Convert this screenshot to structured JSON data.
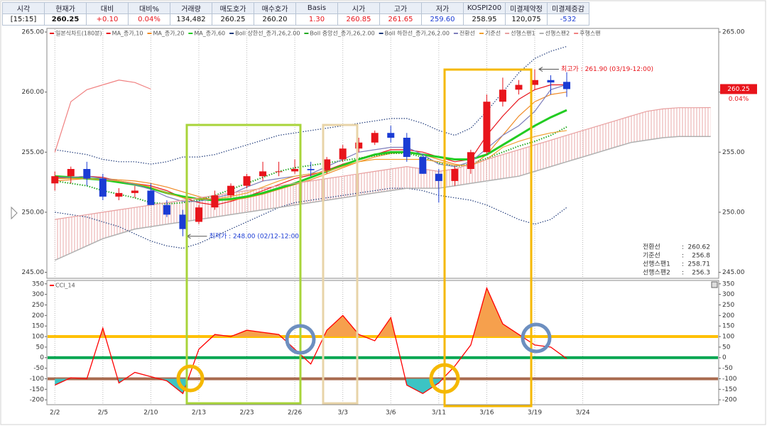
{
  "header_table": {
    "headers": [
      "시각",
      "현재가",
      "대비",
      "대비%",
      "거래량",
      "매도호가",
      "매수호가",
      "Basis",
      "시가",
      "고가",
      "저가",
      "KOSPI200",
      "미결제약정",
      "미결제증감"
    ],
    "values": [
      "[15:15]",
      "260.25",
      "+0.10",
      "0.04%",
      "134,482",
      "260.25",
      "260.20",
      "1.30",
      "260.85",
      "261.65",
      "259.60",
      "258.95",
      "120,075",
      "-532"
    ]
  },
  "chart_data": [
    {
      "type": "candlestick",
      "ylim": [
        244.5,
        265.3
      ],
      "yticks": [
        {
          "value": 245,
          "label": "245.00"
        },
        {
          "value": 250,
          "label": "250.00"
        },
        {
          "value": 255,
          "label": "255.00"
        },
        {
          "value": 260,
          "label": "260.00"
        },
        {
          "value": 265,
          "label": "265.00"
        }
      ],
      "candles": {
        "name": "일본식차트(180분)",
        "up_color": "#e8141b",
        "down_color": "#1b3cd4",
        "open": [
          252.4,
          253.0,
          253.6,
          252.8,
          251.3,
          251.6,
          251.8,
          250.6,
          249.8,
          249.2,
          250.4,
          251.4,
          252.2,
          253.0,
          253.4,
          253.4,
          253.6,
          253.5,
          254.4,
          255.3,
          255.8,
          256.6,
          256.2,
          254.6,
          253.2,
          252.6,
          253.6,
          255.0,
          259.2,
          260.2,
          260.6,
          261.0,
          260.85
        ],
        "high": [
          253.4,
          253.8,
          254.2,
          253.2,
          252.0,
          252.2,
          252.4,
          251.0,
          250.2,
          250.6,
          251.8,
          252.4,
          253.2,
          254.2,
          254.2,
          254.4,
          254.2,
          254.6,
          255.6,
          256.2,
          256.8,
          257.2,
          256.6,
          254.8,
          253.6,
          253.8,
          255.2,
          259.8,
          261.2,
          261.0,
          261.9,
          261.4,
          261.65
        ],
        "low": [
          251.8,
          252.4,
          252.2,
          251.0,
          251.0,
          251.2,
          250.6,
          249.6,
          248.0,
          249.0,
          250.2,
          251.2,
          252.0,
          252.6,
          253.0,
          253.2,
          253.0,
          253.2,
          254.2,
          255.0,
          255.6,
          255.8,
          254.2,
          253.2,
          250.8,
          252.2,
          253.2,
          254.8,
          258.8,
          259.8,
          260.2,
          259.8,
          259.6
        ],
        "close": [
          253.0,
          253.6,
          252.8,
          251.3,
          251.6,
          251.8,
          250.6,
          249.8,
          248.6,
          250.4,
          251.4,
          252.2,
          253.0,
          253.4,
          253.4,
          253.6,
          253.5,
          254.4,
          255.3,
          255.8,
          256.6,
          256.2,
          254.6,
          253.2,
          252.6,
          253.6,
          255.0,
          259.2,
          260.2,
          260.6,
          261.0,
          260.8,
          260.25
        ]
      },
      "series": [
        {
          "name": "MA_종가,10",
          "color": "#e8141b",
          "values": [
            252.8,
            252.9,
            253.0,
            252.9,
            252.6,
            252.4,
            252.2,
            251.8,
            251.2,
            250.8,
            250.6,
            250.9,
            251.3,
            251.8,
            252.3,
            252.8,
            253.1,
            253.5,
            254.0,
            254.4,
            254.8,
            255.2,
            255.2,
            255.0,
            254.6,
            254.2,
            254.4,
            256.4,
            258.0,
            259.4,
            260.2,
            260.6,
            260.6,
            null,
            null,
            null,
            null,
            null,
            null,
            null,
            null,
            null
          ]
        },
        {
          "name": "MA_종가,20",
          "color": "#f08a24",
          "values": [
            252.6,
            252.7,
            252.8,
            252.8,
            252.7,
            252.6,
            252.4,
            252.1,
            251.7,
            251.3,
            251.0,
            251.0,
            251.2,
            251.5,
            251.9,
            252.3,
            252.7,
            253.2,
            253.7,
            254.2,
            254.6,
            254.9,
            255.0,
            254.8,
            254.4,
            254.0,
            253.8,
            254.8,
            256.4,
            258.0,
            259.2,
            259.8,
            260.0,
            null,
            null,
            null,
            null,
            null,
            null,
            null,
            null,
            null
          ]
        },
        {
          "name": "MA_종가,60",
          "color": "#22cc22",
          "width": 3,
          "values": [
            253.0,
            252.9,
            252.8,
            252.7,
            252.5,
            252.3,
            252.0,
            251.6,
            251.3,
            251.1,
            251.0,
            251.1,
            251.3,
            251.6,
            252.0,
            252.4,
            252.9,
            253.4,
            253.9,
            254.4,
            254.8,
            255.0,
            255.0,
            254.8,
            254.6,
            254.4,
            254.4,
            254.8,
            255.6,
            256.4,
            257.2,
            257.9,
            258.5,
            null,
            null,
            null,
            null,
            null,
            null,
            null,
            null,
            null
          ]
        },
        {
          "name": "Boll 상한선_종가,26,2.00",
          "color": "#1f3a7a",
          "dash": "dotted",
          "values": [
            255.2,
            255.0,
            254.8,
            254.4,
            254.2,
            254.2,
            254.0,
            254.2,
            254.6,
            254.6,
            254.8,
            255.2,
            255.6,
            256.0,
            256.4,
            256.6,
            256.8,
            257.0,
            257.2,
            257.4,
            257.6,
            257.8,
            257.8,
            257.4,
            256.8,
            256.4,
            257.0,
            258.4,
            260.0,
            261.6,
            262.8,
            263.4,
            263.8,
            null,
            null,
            null,
            null,
            null,
            null,
            null,
            null,
            null
          ]
        },
        {
          "name": "Boll 중앙선_종가,26,2.00",
          "color": "#22aa22",
          "dash": "dotted",
          "width": 2,
          "values": [
            252.6,
            252.4,
            252.2,
            251.8,
            251.5,
            251.2,
            250.8,
            250.7,
            250.8,
            251.0,
            251.4,
            251.9,
            252.4,
            252.9,
            253.4,
            253.7,
            253.9,
            254.1,
            254.3,
            254.5,
            254.7,
            254.9,
            254.9,
            254.6,
            254.1,
            253.8,
            254.0,
            254.5,
            255.0,
            255.5,
            255.9,
            256.4,
            257.1,
            null,
            null,
            null,
            null,
            null,
            null,
            null,
            null,
            null
          ]
        },
        {
          "name": "Boll 하한선_종가,26,2.00",
          "color": "#1f3a7a",
          "dash": "dotted",
          "values": [
            250.0,
            249.8,
            249.6,
            249.2,
            248.8,
            248.2,
            247.6,
            247.2,
            247.0,
            247.4,
            248.0,
            248.6,
            249.2,
            249.8,
            250.4,
            250.8,
            251.0,
            251.2,
            251.4,
            251.6,
            251.8,
            252.0,
            252.0,
            251.8,
            251.4,
            251.2,
            251.0,
            250.6,
            250.0,
            249.4,
            249.0,
            249.4,
            250.4,
            null,
            null,
            null,
            null,
            null,
            null,
            null,
            null,
            null
          ]
        },
        {
          "name": "전환선",
          "color": "#7d7dbb",
          "values": [
            252.9,
            252.9,
            253.0,
            252.8,
            252.6,
            252.3,
            251.9,
            251.3,
            250.9,
            250.9,
            251.2,
            251.5,
            252.1,
            252.6,
            252.8,
            253.0,
            253.2,
            253.8,
            254.4,
            255.0,
            255.2,
            255.4,
            255.4,
            254.8,
            254.0,
            253.8,
            254.2,
            255.3,
            256.4,
            257.2,
            258.4,
            260.2,
            260.62,
            null,
            null,
            null,
            null,
            null,
            null,
            null,
            null,
            null
          ]
        },
        {
          "name": "기준선",
          "color": "#f0a030",
          "values": [
            252.8,
            252.8,
            252.8,
            252.7,
            252.6,
            252.4,
            252.1,
            251.6,
            251.2,
            251.1,
            251.1,
            251.3,
            251.6,
            252.1,
            252.6,
            253.0,
            253.2,
            253.4,
            253.8,
            254.2,
            254.4,
            254.4,
            254.4,
            254.4,
            254.2,
            253.9,
            253.9,
            254.4,
            255.4,
            255.9,
            256.3,
            256.6,
            256.8,
            null,
            null,
            null,
            null,
            null,
            null,
            null,
            null,
            null
          ]
        },
        {
          "name": "선행스팬1",
          "color": "#e8a0a0",
          "role": "cloud-upper",
          "values": [
            249.4,
            249.6,
            249.8,
            250.0,
            250.2,
            250.4,
            250.6,
            250.8,
            251.0,
            251.2,
            251.4,
            251.6,
            251.8,
            252.0,
            252.2,
            252.4,
            252.6,
            252.8,
            253.0,
            253.2,
            253.4,
            253.6,
            253.8,
            253.6,
            253.4,
            253.6,
            254.0,
            254.4,
            254.8,
            255.2,
            255.6,
            256.0,
            256.4,
            256.8,
            257.2,
            257.6,
            258.0,
            258.4,
            258.6,
            258.7,
            258.7,
            258.71
          ]
        },
        {
          "name": "선행스팬2",
          "color": "#b0b0b0",
          "width": 1.5,
          "role": "cloud-lower",
          "values": [
            246.0,
            246.6,
            247.2,
            247.8,
            248.2,
            248.6,
            248.8,
            249.0,
            249.2,
            249.4,
            249.6,
            249.8,
            250.0,
            250.2,
            250.4,
            250.6,
            250.8,
            251.0,
            251.2,
            251.4,
            251.6,
            251.8,
            252.0,
            252.0,
            252.0,
            252.2,
            252.4,
            252.6,
            252.8,
            253.0,
            253.4,
            253.8,
            254.2,
            254.6,
            255.0,
            255.4,
            255.8,
            256.0,
            256.2,
            256.3,
            256.3,
            256.3
          ]
        },
        {
          "name": "후행스팬",
          "color": "#f08080",
          "values": [
            255.0,
            259.2,
            260.2,
            260.6,
            261.0,
            260.8,
            260.25,
            null,
            null,
            null,
            null,
            null,
            null,
            null,
            null,
            null,
            null,
            null,
            null,
            null,
            null,
            null,
            null,
            null,
            null,
            null,
            null,
            null,
            null,
            null,
            null,
            null,
            null,
            null,
            null,
            null,
            null,
            null,
            null,
            null,
            null,
            null
          ]
        }
      ],
      "annotations": [
        {
          "text": "최고가 : 261.90 (03/19-12:00)",
          "value": 261.9,
          "anchor": "high",
          "color": "#e8141b"
        },
        {
          "text": "최저가 : 248.00 (02/12-12:00)",
          "value": 248.0,
          "anchor": "low",
          "color": "#1b3cd4"
        }
      ],
      "last_price": 260.25,
      "last_change": "0.04%",
      "last_color": "#e8141b",
      "info_box": {
        "separator": ":",
        "items": [
          {
            "label": "전환선",
            "value": 260.62
          },
          {
            "label": "기준선",
            "value": 256.8
          },
          {
            "label": "선행스팬1",
            "value": 258.71
          },
          {
            "label": "선행스팬2",
            "value": 256.3
          }
        ]
      }
    },
    {
      "type": "line",
      "categories": [
        "2/2",
        null,
        null,
        "2/5",
        null,
        null,
        "2/10",
        null,
        null,
        "2/13",
        null,
        null,
        "2/23",
        null,
        null,
        "2/26",
        null,
        null,
        "3/3",
        null,
        null,
        "3/6",
        null,
        null,
        "3/11",
        null,
        null,
        "3/16",
        null,
        null,
        "3/19",
        null,
        null,
        "3/24",
        null,
        null,
        null,
        null,
        null,
        null,
        null,
        null
      ],
      "series": [
        {
          "name": "CCI_14",
          "color": "#ff0000",
          "values": [
            -130,
            -95,
            -100,
            140,
            -120,
            -70,
            -90,
            -110,
            -170,
            40,
            110,
            100,
            130,
            120,
            110,
            40,
            -30,
            130,
            200,
            110,
            80,
            190,
            -130,
            -170,
            -120,
            -40,
            60,
            330,
            160,
            110,
            60,
            50,
            -5,
            null,
            null,
            null,
            null,
            null,
            null,
            null,
            null,
            null
          ]
        }
      ],
      "ylim": [
        -223,
        366
      ],
      "yticks": [
        350,
        300,
        250,
        200,
        150,
        100,
        50,
        0,
        -50,
        -100,
        -150,
        -200
      ],
      "hlines": [
        {
          "value": 100,
          "color": "#ffc000"
        },
        {
          "value": 0,
          "color": "#00a651"
        },
        {
          "value": -100,
          "color": "#a86a4e"
        }
      ],
      "fill_above": {
        "value": 100,
        "color": "#f6a04d"
      },
      "fill_below": {
        "value": -100,
        "color": "#3cc4c4"
      }
    }
  ]
}
